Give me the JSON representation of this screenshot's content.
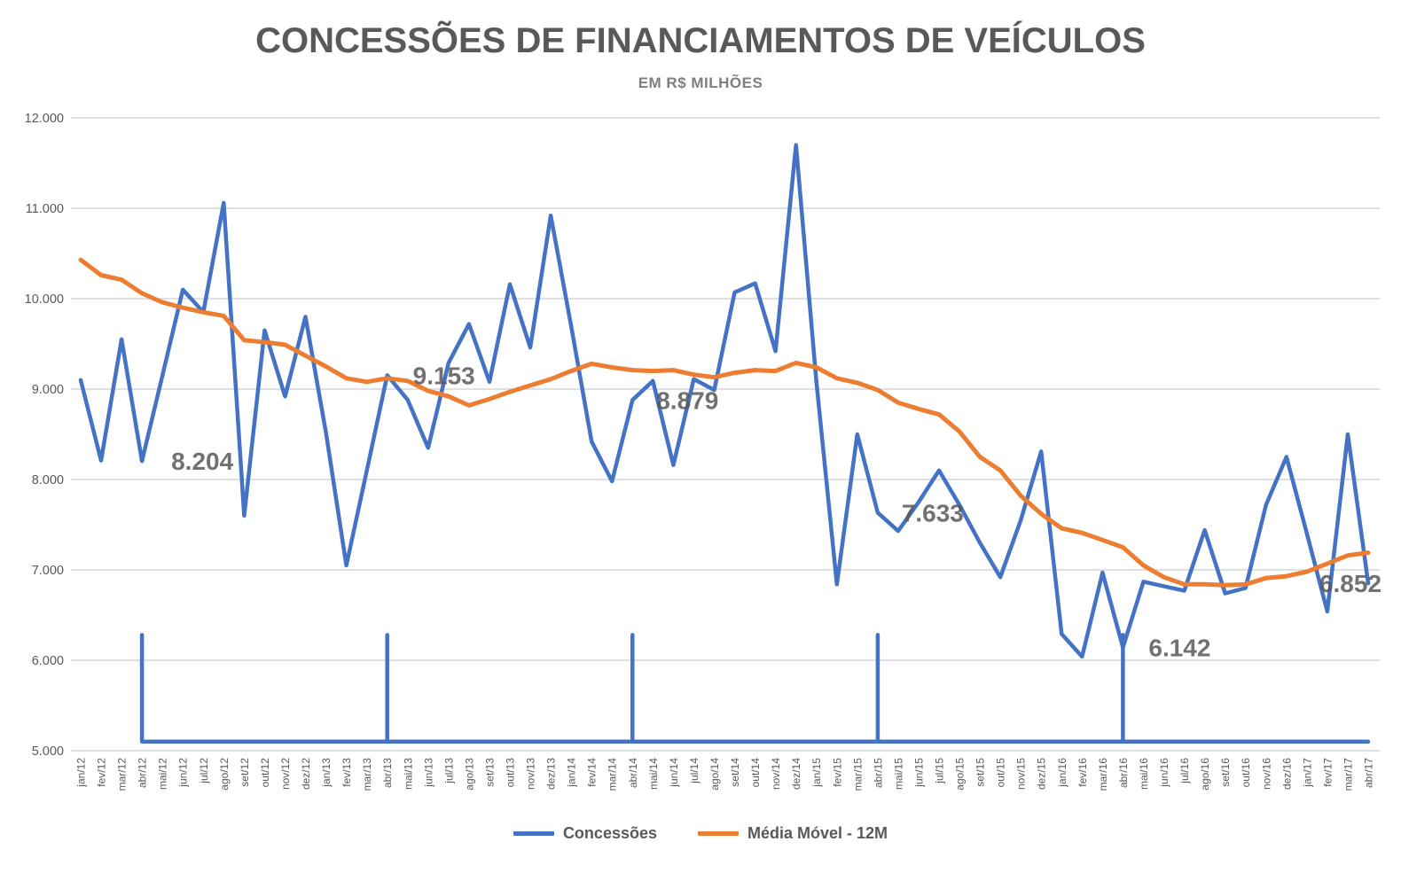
{
  "title": "CONCESSÕES DE FINANCIAMENTOS DE VEÍCULOS",
  "subtitle": "EM R$ MILHÕES",
  "legend": {
    "items": [
      {
        "label": "Concessões",
        "color": "#4472C4"
      },
      {
        "label": "Média Móvel - 12M",
        "color": "#ED7D31"
      }
    ]
  },
  "chart_data": {
    "type": "line",
    "title": "CONCESSÕES DE FINANCIAMENTOS DE VEÍCULOS",
    "subtitle": "EM R$ MILHÕES",
    "unit": "R$ milhões",
    "grid": true,
    "legend_position": "bottom",
    "x_label_rotation": -90,
    "categories": [
      "jan/12",
      "fev/12",
      "mar/12",
      "abr/12",
      "mai/12",
      "jun/12",
      "jul/12",
      "ago/12",
      "set/12",
      "out/12",
      "nov/12",
      "dez/12",
      "jan/13",
      "fev/13",
      "mar/13",
      "abr/13",
      "mai/13",
      "jun/13",
      "jul/13",
      "ago/13",
      "set/13",
      "out/13",
      "nov/13",
      "dez/13",
      "jan/14",
      "fev/14",
      "mar/14",
      "abr/14",
      "mai/14",
      "jun/14",
      "jul/14",
      "ago/14",
      "set/14",
      "out/14",
      "nov/14",
      "dez/14",
      "jan/15",
      "fev/15",
      "mar/15",
      "abr/15",
      "mai/15",
      "jun/15",
      "jul/15",
      "ago/15",
      "set/15",
      "out/15",
      "nov/15",
      "dez/15",
      "jan/16",
      "fev/16",
      "mar/16",
      "abr/16",
      "mai/16",
      "jun/16",
      "jul/16",
      "ago/16",
      "set/16",
      "out/16",
      "nov/16",
      "dez/16",
      "jan/17",
      "fev/17",
      "mar/17",
      "abr/17"
    ],
    "series": [
      {
        "name": "Concessões",
        "color": "#4472C4",
        "width": 4.5,
        "values": [
          9100,
          8210,
          9550,
          8204,
          9150,
          10100,
          9850,
          11060,
          7600,
          9650,
          8920,
          9800,
          8520,
          7050,
          8100,
          9153,
          8880,
          8350,
          9290,
          9720,
          9080,
          10160,
          9460,
          10920,
          9700,
          8420,
          7980,
          8879,
          9090,
          8160,
          9110,
          8990,
          10070,
          10170,
          9420,
          11700,
          9080,
          6840,
          8500,
          7633,
          7430,
          7750,
          8100,
          7720,
          7300,
          6920,
          7550,
          8310,
          6290,
          6040,
          6970,
          6142,
          6870,
          6820,
          6770,
          7440,
          6740,
          6800,
          7720,
          8250,
          7400,
          6540,
          8500,
          6852
        ]
      },
      {
        "name": "Média Móvel - 12M",
        "color": "#ED7D31",
        "width": 5,
        "values": [
          10430,
          10260,
          10210,
          10060,
          9960,
          9900,
          9850,
          9810,
          9540,
          9520,
          9490,
          9370,
          9250,
          9120,
          9080,
          9120,
          9090,
          8980,
          8920,
          8820,
          8890,
          8970,
          9040,
          9110,
          9200,
          9280,
          9240,
          9210,
          9200,
          9210,
          9160,
          9130,
          9180,
          9210,
          9200,
          9290,
          9240,
          9120,
          9070,
          8990,
          8850,
          8780,
          8720,
          8530,
          8250,
          8100,
          7820,
          7620,
          7460,
          7410,
          7330,
          7250,
          7050,
          6920,
          6840,
          6840,
          6830,
          6840,
          6910,
          6930,
          6980,
          7070,
          7160,
          7190
        ]
      },
      {
        "name": "april-marker-baseline",
        "color": "#4472C4",
        "width": 4.5,
        "in_legend": false,
        "points": [
          [
            3,
            5100
          ],
          [
            3,
            6280
          ],
          [
            3,
            5100
          ],
          [
            15,
            5100
          ],
          [
            15,
            6280
          ],
          [
            15,
            5100
          ],
          [
            27,
            5100
          ],
          [
            27,
            6280
          ],
          [
            27,
            5100
          ],
          [
            39,
            5100
          ],
          [
            39,
            6280
          ],
          [
            39,
            5100
          ],
          [
            51,
            5100
          ],
          [
            51,
            6280
          ],
          [
            51,
            5100
          ],
          [
            63,
            5100
          ]
        ]
      }
    ],
    "annotations": [
      {
        "text": "8.204",
        "value": 8204,
        "month_index": 3,
        "dx": 68
      },
      {
        "text": "9.153",
        "value": 9153,
        "month_index": 15,
        "dx": 64
      },
      {
        "text": "8.879",
        "value": 8879,
        "month_index": 27,
        "dx": 62
      },
      {
        "text": "7.633",
        "value": 7633,
        "month_index": 39,
        "dx": 62
      },
      {
        "text": "6.142",
        "value": 6142,
        "month_index": 51,
        "dx": 64
      },
      {
        "text": "6.852",
        "value": 6852,
        "month_index": 63,
        "dx": -20
      }
    ],
    "y_axis": {
      "min": 5000,
      "max": 12000,
      "step": 1000,
      "ticks": [
        {
          "label": "12.000",
          "value": 12000
        },
        {
          "label": "11.000",
          "value": 11000
        },
        {
          "label": "10.000",
          "value": 10000
        },
        {
          "label": "9.000",
          "value": 9000
        },
        {
          "label": "8.000",
          "value": 8000
        },
        {
          "label": "7.000",
          "value": 7000
        },
        {
          "label": "6.000",
          "value": 6000
        },
        {
          "label": "5.000",
          "value": 5000
        }
      ]
    },
    "colors": {
      "grid": "#D6D6D6",
      "axis_text": "#595959",
      "annotation_text": "#595959"
    }
  }
}
